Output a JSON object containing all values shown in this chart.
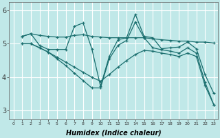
{
  "xlabel": "Humidex (Indice chaleur)",
  "bg_color": "#c0e8e8",
  "grid_color": "#ffffff",
  "line_color": "#1a6e6e",
  "xlim": [
    -0.5,
    23.5
  ],
  "ylim": [
    2.75,
    6.25
  ],
  "yticks": [
    3,
    4,
    5,
    6
  ],
  "xticks": [
    0,
    1,
    2,
    3,
    4,
    5,
    6,
    7,
    8,
    9,
    10,
    11,
    12,
    13,
    14,
    15,
    16,
    17,
    18,
    19,
    20,
    21,
    22,
    23
  ],
  "series": [
    {
      "x": [
        1,
        2,
        3,
        4,
        5,
        6,
        7,
        8,
        9,
        10,
        11,
        12,
        13,
        14,
        15,
        16,
        17,
        18,
        19,
        20,
        21,
        22,
        23
      ],
      "y": [
        5.22,
        5.3,
        4.95,
        4.83,
        4.83,
        4.83,
        5.52,
        5.62,
        4.85,
        3.73,
        4.62,
        5.12,
        5.18,
        5.88,
        5.22,
        5.18,
        4.85,
        4.88,
        4.9,
        5.05,
        4.85,
        4.08,
        3.52
      ]
    },
    {
      "x": [
        1,
        2,
        3,
        4,
        5,
        6,
        7,
        8,
        9,
        10,
        11,
        12,
        13,
        14,
        15,
        16,
        17,
        18,
        19,
        20,
        21,
        22,
        23
      ],
      "y": [
        5.22,
        5.3,
        5.25,
        5.22,
        5.2,
        5.2,
        5.25,
        5.27,
        5.22,
        5.2,
        5.18,
        5.18,
        5.18,
        5.18,
        5.18,
        5.15,
        5.12,
        5.1,
        5.08,
        5.08,
        5.05,
        5.05,
        5.02
      ]
    },
    {
      "x": [
        1,
        2,
        3,
        4,
        5,
        6,
        7,
        8,
        9,
        10,
        11,
        12,
        13,
        14,
        15,
        16,
        17,
        18,
        19,
        20,
        21,
        22,
        23
      ],
      "y": [
        5.0,
        5.0,
        4.88,
        4.75,
        4.55,
        4.35,
        4.12,
        3.9,
        3.68,
        3.68,
        4.55,
        4.95,
        5.1,
        5.65,
        5.18,
        4.88,
        4.82,
        4.78,
        4.72,
        4.88,
        4.72,
        3.85,
        3.18
      ]
    },
    {
      "x": [
        1,
        2,
        3,
        4,
        5,
        6,
        7,
        8,
        9,
        10,
        11,
        12,
        13,
        14,
        15,
        16,
        17,
        18,
        19,
        20,
        21,
        22,
        23
      ],
      "y": [
        5.0,
        5.0,
        4.88,
        4.75,
        4.6,
        4.45,
        4.3,
        4.15,
        4.0,
        3.88,
        4.08,
        4.3,
        4.5,
        4.68,
        4.8,
        4.78,
        4.72,
        4.68,
        4.62,
        4.72,
        4.62,
        3.75,
        3.18
      ]
    }
  ]
}
